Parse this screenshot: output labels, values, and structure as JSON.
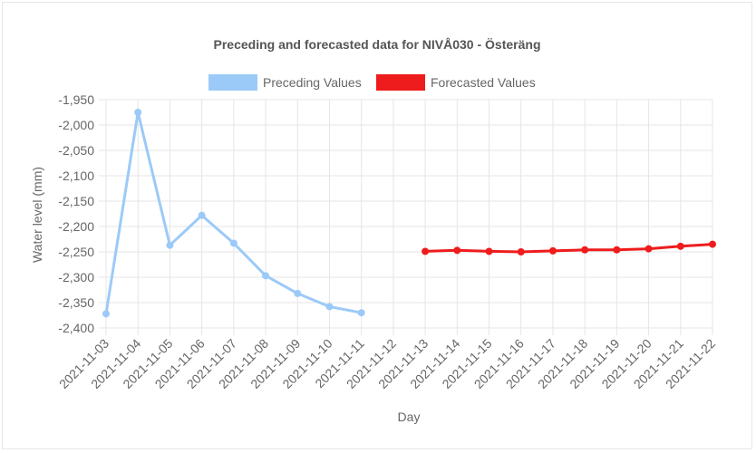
{
  "chart_data": {
    "type": "line",
    "title": "Preceding and forecasted data for NIVÅ030 - Österäng",
    "xlabel": "Day",
    "ylabel": "Water level (mm)",
    "categories": [
      "2021-11-03",
      "2021-11-04",
      "2021-11-05",
      "2021-11-06",
      "2021-11-07",
      "2021-11-08",
      "2021-11-09",
      "2021-11-10",
      "2021-11-11",
      "2021-11-12",
      "2021-11-13",
      "2021-11-14",
      "2021-11-15",
      "2021-11-16",
      "2021-11-17",
      "2021-11-18",
      "2021-11-19",
      "2021-11-20",
      "2021-11-21",
      "2021-11-22"
    ],
    "yticks": [
      "-1,950",
      "-2,000",
      "-2,050",
      "-2,100",
      "-2,150",
      "-2,200",
      "-2,250",
      "-2,300",
      "-2,350",
      "-2,400"
    ],
    "ylim": [
      -2400,
      -1950
    ],
    "grid": true,
    "legend_position": "top",
    "series": [
      {
        "name": "Preceding Values",
        "color": "#9ccaf8",
        "values": [
          -2372,
          -1975,
          -2237,
          -2178,
          -2233,
          -2297,
          -2332,
          -2358,
          -2370,
          null,
          null,
          null,
          null,
          null,
          null,
          null,
          null,
          null,
          null,
          null
        ]
      },
      {
        "name": "Forecasted Values",
        "color": "#ee1c1c",
        "values": [
          null,
          null,
          null,
          null,
          null,
          null,
          null,
          null,
          null,
          null,
          -2249,
          -2247,
          -2249,
          -2250,
          -2248,
          -2246,
          -2246,
          -2244,
          -2239,
          -2235
        ]
      }
    ]
  }
}
